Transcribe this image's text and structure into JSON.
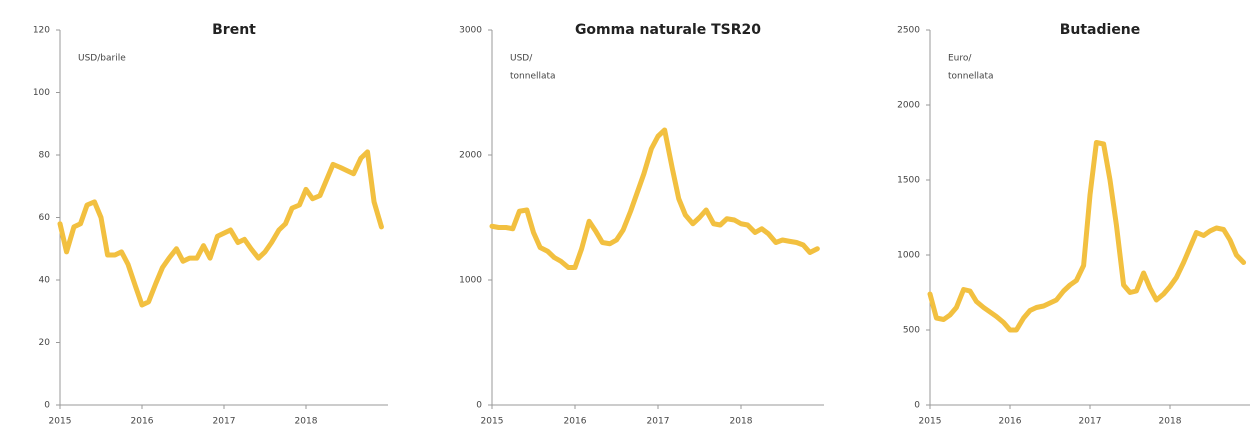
{
  "chart_data": [
    {
      "type": "line",
      "title": "Brent",
      "unit_label": [
        "USD/barile"
      ],
      "x": [
        2015,
        2015.08,
        2015.17,
        2015.25,
        2015.33,
        2015.42,
        2015.5,
        2015.58,
        2015.67,
        2015.75,
        2015.83,
        2015.92,
        2016,
        2016.08,
        2016.17,
        2016.25,
        2016.33,
        2016.42,
        2016.5,
        2016.58,
        2016.67,
        2016.75,
        2016.83,
        2016.92,
        2017,
        2017.08,
        2017.17,
        2017.25,
        2017.33,
        2017.42,
        2017.5,
        2017.58,
        2017.67,
        2017.75,
        2017.83,
        2017.92,
        2018,
        2018.08,
        2018.17,
        2018.25,
        2018.33,
        2018.42,
        2018.5,
        2018.58,
        2018.67,
        2018.75,
        2018.83,
        2018.92
      ],
      "series": [
        {
          "name": "Brent",
          "color": "#f2c040",
          "values": [
            58,
            49,
            57,
            58,
            64,
            65,
            60,
            48,
            48,
            49,
            45,
            38,
            32,
            33,
            39,
            44,
            47,
            50,
            46,
            47,
            47,
            51,
            47,
            54,
            55,
            56,
            52,
            53,
            50,
            47,
            49,
            52,
            56,
            58,
            63,
            64,
            69,
            66,
            67,
            72,
            77,
            76,
            75,
            74,
            79,
            81,
            65,
            57
          ]
        }
      ],
      "xlim": [
        2015,
        2019
      ],
      "xticks": [
        2015,
        2016,
        2017,
        2018
      ],
      "ylim": [
        0,
        120
      ],
      "yticks": [
        0,
        20,
        40,
        60,
        80,
        100,
        120
      ]
    },
    {
      "type": "line",
      "title": "Gomma naturale TSR20",
      "unit_label": [
        "USD/",
        "tonnellata"
      ],
      "x": [
        2015,
        2015.08,
        2015.17,
        2015.25,
        2015.33,
        2015.42,
        2015.5,
        2015.58,
        2015.67,
        2015.75,
        2015.83,
        2015.92,
        2016,
        2016.08,
        2016.17,
        2016.25,
        2016.33,
        2016.42,
        2016.5,
        2016.58,
        2016.67,
        2016.75,
        2016.83,
        2016.92,
        2017,
        2017.08,
        2017.17,
        2017.25,
        2017.33,
        2017.42,
        2017.5,
        2017.58,
        2017.67,
        2017.75,
        2017.83,
        2017.92,
        2018,
        2018.08,
        2018.17,
        2018.25,
        2018.33,
        2018.42,
        2018.5,
        2018.58,
        2018.67,
        2018.75,
        2018.83,
        2018.92
      ],
      "series": [
        {
          "name": "Gomma naturale TSR20",
          "color": "#f2c040",
          "values": [
            1430,
            1420,
            1420,
            1410,
            1550,
            1560,
            1380,
            1260,
            1230,
            1180,
            1150,
            1100,
            1100,
            1250,
            1470,
            1390,
            1300,
            1290,
            1320,
            1400,
            1550,
            1700,
            1850,
            2050,
            2150,
            2200,
            1900,
            1650,
            1520,
            1450,
            1500,
            1560,
            1450,
            1440,
            1490,
            1480,
            1450,
            1440,
            1380,
            1410,
            1370,
            1300,
            1320,
            1310,
            1300,
            1280,
            1220,
            1250
          ]
        }
      ],
      "xlim": [
        2015,
        2019
      ],
      "xticks": [
        2015,
        2016,
        2017,
        2018
      ],
      "ylim": [
        0,
        3000
      ],
      "yticks": [
        0,
        1000,
        2000,
        3000
      ]
    },
    {
      "type": "line",
      "title": "Butadiene",
      "unit_label": [
        "Euro/",
        "tonnellata"
      ],
      "x": [
        2015,
        2015.08,
        2015.17,
        2015.25,
        2015.33,
        2015.42,
        2015.5,
        2015.58,
        2015.67,
        2015.75,
        2015.83,
        2015.92,
        2016,
        2016.08,
        2016.17,
        2016.25,
        2016.33,
        2016.42,
        2016.5,
        2016.58,
        2016.67,
        2016.75,
        2016.83,
        2016.92,
        2017,
        2017.08,
        2017.17,
        2017.25,
        2017.33,
        2017.42,
        2017.5,
        2017.58,
        2017.67,
        2017.75,
        2017.83,
        2017.92,
        2018,
        2018.08,
        2018.17,
        2018.25,
        2018.33,
        2018.42,
        2018.5,
        2018.58,
        2018.67,
        2018.75,
        2018.83,
        2018.92
      ],
      "series": [
        {
          "name": "Butadiene",
          "color": "#f2c040",
          "values": [
            740,
            580,
            570,
            600,
            650,
            770,
            760,
            690,
            650,
            620,
            590,
            550,
            500,
            500,
            580,
            630,
            650,
            660,
            680,
            700,
            760,
            800,
            830,
            930,
            1400,
            1750,
            1740,
            1500,
            1200,
            800,
            750,
            760,
            880,
            780,
            700,
            740,
            790,
            850,
            950,
            1050,
            1150,
            1130,
            1160,
            1180,
            1170,
            1100,
            1000,
            950
          ]
        }
      ],
      "xlim": [
        2015,
        2019
      ],
      "xticks": [
        2015,
        2016,
        2017,
        2018
      ],
      "ylim": [
        0,
        2500
      ],
      "yticks": [
        0,
        500,
        1000,
        1500,
        2000,
        2500
      ]
    }
  ]
}
